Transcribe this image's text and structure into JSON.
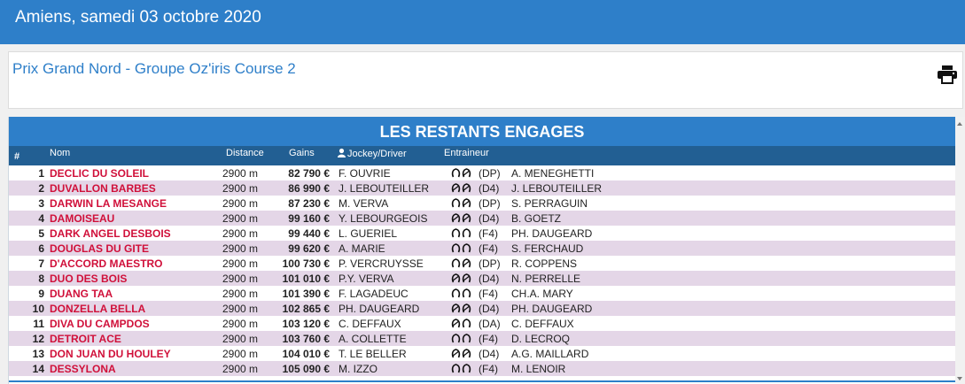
{
  "header": {
    "title": "Amiens, samedi 03 octobre 2020"
  },
  "course": {
    "title": "Prix Grand Nord - Groupe Oz'iris Course 2",
    "print_icon": "print-icon"
  },
  "table": {
    "banner": "LES RESTANTS ENGAGES",
    "columns": {
      "num": "#",
      "nom": "Nom",
      "distance": "Distance",
      "gains": "Gains",
      "jockey": "Jockey/Driver",
      "entraineur": "Entraineur"
    },
    "rows": [
      {
        "num": "1",
        "nom": "DECLIC DU SOLEIL",
        "distance": "2900 m",
        "gains": "82 790 €",
        "jockey": "F. OUVRIE",
        "shoes": [
          "open",
          "barred"
        ],
        "shoe_code": "(DP)",
        "entraineur": "A. MENEGHETTI"
      },
      {
        "num": "2",
        "nom": "DUVALLON BARBES",
        "distance": "2900 m",
        "gains": "86 990 €",
        "jockey": "J. LEBOUTEILLER",
        "shoes": [
          "barred",
          "barred"
        ],
        "shoe_code": "(D4)",
        "entraineur": "J. LEBOUTEILLER"
      },
      {
        "num": "3",
        "nom": "DARWIN LA MESANGE",
        "distance": "2900 m",
        "gains": "87 230 €",
        "jockey": "M. VERVA",
        "shoes": [
          "open",
          "barred"
        ],
        "shoe_code": "(DP)",
        "entraineur": "S. PERRAGUIN"
      },
      {
        "num": "4",
        "nom": "DAMOISEAU",
        "distance": "2900 m",
        "gains": "99 160 €",
        "jockey": "Y. LEBOURGEOIS",
        "shoes": [
          "barred",
          "barred"
        ],
        "shoe_code": "(D4)",
        "entraineur": "B. GOETZ"
      },
      {
        "num": "5",
        "nom": "DARK ANGEL DESBOIS",
        "distance": "2900 m",
        "gains": "99 440 €",
        "jockey": "L. GUERIEL",
        "shoes": [
          "open",
          "open"
        ],
        "shoe_code": "(F4)",
        "entraineur": "PH. DAUGEARD"
      },
      {
        "num": "6",
        "nom": "DOUGLAS DU GITE",
        "distance": "2900 m",
        "gains": "99 620 €",
        "jockey": "A. MARIE",
        "shoes": [
          "open",
          "open"
        ],
        "shoe_code": "(F4)",
        "entraineur": "S. FERCHAUD"
      },
      {
        "num": "7",
        "nom": "D'ACCORD MAESTRO",
        "distance": "2900 m",
        "gains": "100 730 €",
        "jockey": "P. VERCRUYSSE",
        "shoes": [
          "open",
          "barred"
        ],
        "shoe_code": "(DP)",
        "entraineur": "R. COPPENS"
      },
      {
        "num": "8",
        "nom": "DUO DES BOIS",
        "distance": "2900 m",
        "gains": "101 010 €",
        "jockey": "P.Y. VERVA",
        "shoes": [
          "barred",
          "barred"
        ],
        "shoe_code": "(D4)",
        "entraineur": "N. PERRELLE"
      },
      {
        "num": "9",
        "nom": "DUANG TAA",
        "distance": "2900 m",
        "gains": "101 390 €",
        "jockey": "F. LAGADEUC",
        "shoes": [
          "open",
          "open"
        ],
        "shoe_code": "(F4)",
        "entraineur": "CH.A. MARY"
      },
      {
        "num": "10",
        "nom": "DONZELLA BELLA",
        "distance": "2900 m",
        "gains": "102 865 €",
        "jockey": "PH. DAUGEARD",
        "shoes": [
          "barred",
          "barred"
        ],
        "shoe_code": "(D4)",
        "entraineur": "PH. DAUGEARD"
      },
      {
        "num": "11",
        "nom": "DIVA DU CAMPDOS",
        "distance": "2900 m",
        "gains": "103 120 €",
        "jockey": "C. DEFFAUX",
        "shoes": [
          "barred",
          "open"
        ],
        "shoe_code": "(DA)",
        "entraineur": "C. DEFFAUX"
      },
      {
        "num": "12",
        "nom": "DETROIT ACE",
        "distance": "2900 m",
        "gains": "103 760 €",
        "jockey": "A. COLLETTE",
        "shoes": [
          "open",
          "open"
        ],
        "shoe_code": "(F4)",
        "entraineur": "D. LECROQ"
      },
      {
        "num": "13",
        "nom": "DON JUAN DU HOULEY",
        "distance": "2900 m",
        "gains": "104 010 €",
        "jockey": "T. LE BELLER",
        "shoes": [
          "barred",
          "barred"
        ],
        "shoe_code": "(D4)",
        "entraineur": "A.G. MAILLARD"
      },
      {
        "num": "14",
        "nom": "DESSYLONA",
        "distance": "2900 m",
        "gains": "105 090 €",
        "jockey": "M. IZZO",
        "shoes": [
          "open",
          "open"
        ],
        "shoe_code": "(F4)",
        "entraineur": "M. LENOIR"
      }
    ]
  },
  "colors": {
    "primary": "#2e7fc9",
    "header_dark": "#225f93",
    "row_alt": "#e4d6e7",
    "horse_name": "#d0103a"
  }
}
